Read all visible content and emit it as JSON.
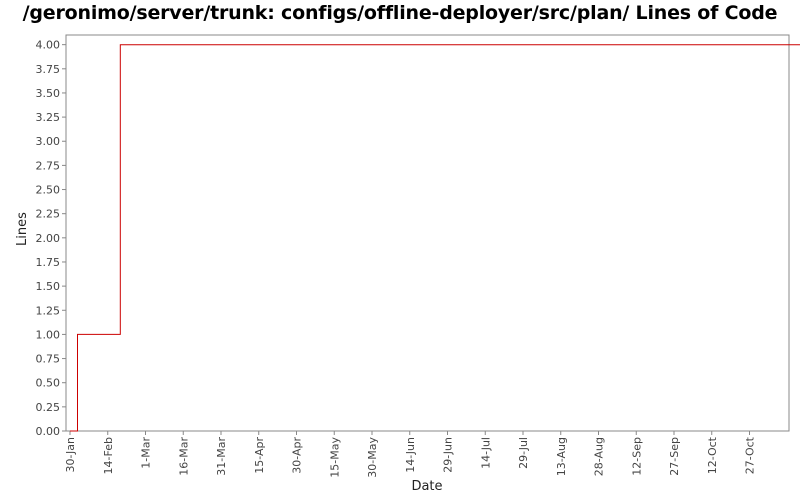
{
  "chart_data": {
    "type": "line",
    "title": "/geronimo/server/trunk: configs/offline-deployer/src/plan/ Lines of Code",
    "xlabel": "Date",
    "ylabel": "Lines",
    "ylim": [
      0,
      4.1
    ],
    "y_ticks": [
      "0.00",
      "0.25",
      "0.50",
      "0.75",
      "1.00",
      "1.25",
      "1.50",
      "1.75",
      "2.00",
      "2.25",
      "2.50",
      "2.75",
      "3.00",
      "3.25",
      "3.50",
      "3.75",
      "4.00"
    ],
    "x_ticks": [
      "30-Jan",
      "14-Feb",
      "1-Mar",
      "16-Mar",
      "31-Mar",
      "15-Apr",
      "30-Apr",
      "15-May",
      "30-May",
      "14-Jun",
      "29-Jun",
      "14-Jul",
      "29-Jul",
      "13-Aug",
      "28-Aug",
      "12-Sep",
      "27-Sep",
      "12-Oct",
      "27-Oct"
    ],
    "grid": false,
    "legend": "none",
    "series": [
      {
        "color": "#cc0000",
        "step": true,
        "x_days": [
          0,
          3,
          3,
          20,
          20,
          291,
          291
        ],
        "values": [
          0,
          0,
          1,
          1,
          4,
          4,
          0
        ]
      }
    ]
  }
}
